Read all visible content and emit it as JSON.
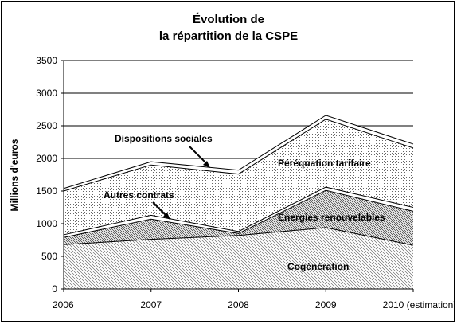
{
  "chart_data": {
    "type": "area",
    "stacked": true,
    "title": "Évolution de",
    "subtitle": "la répartition de la CSPE",
    "xlabel": "",
    "ylabel": "Millions d'euros",
    "ylim": [
      0,
      3500
    ],
    "yticks": [
      0,
      500,
      1000,
      1500,
      2000,
      2500,
      3000,
      3500
    ],
    "gridlines": true,
    "categories": [
      "2006",
      "2007",
      "2008",
      "2009",
      "2010 (estimation)"
    ],
    "series": [
      {
        "name": "Cogénération",
        "values": [
          680,
          760,
          820,
          940,
          670
        ]
      },
      {
        "name": "Energies renouvelables",
        "values": [
          110,
          310,
          30,
          570,
          520
        ]
      },
      {
        "name": "Autres contrats",
        "values": [
          40,
          60,
          30,
          50,
          60
        ]
      },
      {
        "name": "Péréquation tarifaire",
        "values": [
          670,
          770,
          880,
          1040,
          910
        ]
      },
      {
        "name": "Dispositions sociales",
        "values": [
          40,
          50,
          60,
          60,
          60
        ]
      }
    ],
    "pattern_colors": {
      "line": "#000000",
      "band_line": "#ffffff",
      "grid": "#000000"
    }
  }
}
